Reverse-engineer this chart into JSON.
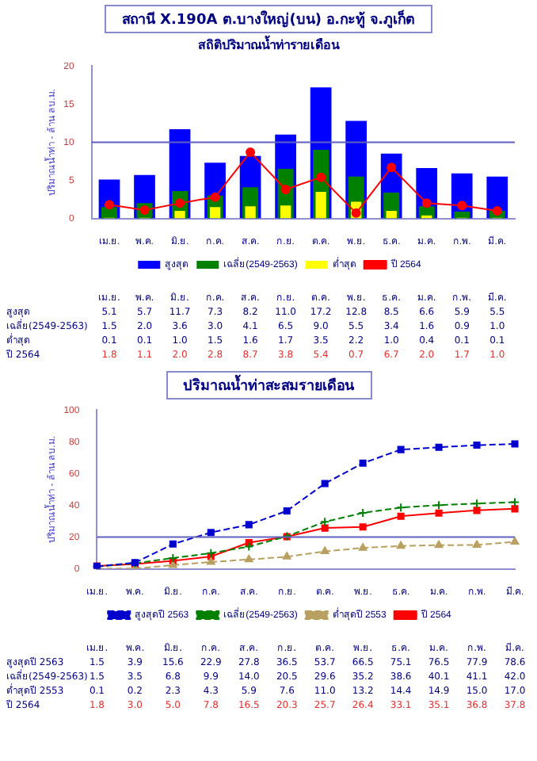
{
  "chart_data": [
    {
      "type": "bar",
      "title": "สถานี X.190A ต.บางใหญ่(บน) อ.กะทู้ จ.ภูเก็ต",
      "subtitle": "สถิติปริมาณน้ำท่ารายเดือน",
      "ylabel": "ปริมาณน้ำท่า - ล้าน ลบ.ม.",
      "categories": [
        "เม.ย.",
        "พ.ค.",
        "มิ.ย.",
        "ก.ค.",
        "ส.ค.",
        "ก.ย.",
        "ต.ค.",
        "พ.ย.",
        "ธ.ค.",
        "ม.ค.",
        "ก.พ.",
        "มี.ค."
      ],
      "series": [
        {
          "name": "สูงสุด",
          "color": "#0000ff",
          "values": [
            5.1,
            5.7,
            11.7,
            7.3,
            8.2,
            11.0,
            17.2,
            12.8,
            8.5,
            6.6,
            5.9,
            5.5
          ],
          "value_labels": [
            "5.1",
            "5.7",
            "11.7",
            "7.3",
            "8.2",
            "11.0",
            "17.2",
            "12.8",
            "8.5",
            "6.6",
            "5.9",
            "5.5"
          ]
        },
        {
          "name": "เฉลี่ย(2549-2563)",
          "color": "#008000",
          "values": [
            1.5,
            2.0,
            3.6,
            3.0,
            4.1,
            6.5,
            9.0,
            5.5,
            3.4,
            1.6,
            0.9,
            1.0
          ],
          "value_labels": [
            "1.5",
            "2.0",
            "3.6",
            "3.0",
            "4.1",
            "6.5",
            "9.0",
            "5.5",
            "3.4",
            "1.6",
            "0.9",
            "1.0"
          ]
        },
        {
          "name": "ต่ำสุด",
          "color": "#ffff00",
          "values": [
            0.1,
            0.1,
            1.0,
            1.5,
            1.6,
            1.7,
            3.5,
            2.2,
            1.0,
            0.4,
            0.1,
            0.1
          ],
          "value_labels": [
            "0.1",
            "0.1",
            "1.0",
            "1.5",
            "1.6",
            "1.7",
            "3.5",
            "2.2",
            "1.0",
            "0.4",
            "0.1",
            "0.1"
          ]
        },
        {
          "name": "ปี 2564",
          "type": "line",
          "color": "#ff0000",
          "marker": "circle",
          "values": [
            1.8,
            1.1,
            2.0,
            2.8,
            8.7,
            3.8,
            5.4,
            0.7,
            6.7,
            2.0,
            1.7,
            1.0
          ],
          "value_labels": [
            "1.8",
            "1.1",
            "2.0",
            "2.8",
            "8.7",
            "3.8",
            "5.4",
            "0.7",
            "6.7",
            "2.0",
            "1.7",
            "1.0"
          ]
        }
      ],
      "ylim": [
        0,
        20
      ],
      "yticks": [
        0,
        5,
        10,
        15,
        20
      ],
      "ref_lines": [
        {
          "axis": "y",
          "value": 10
        }
      ],
      "legend": "bottom"
    },
    {
      "type": "line",
      "title": "ปริมาณน้ำท่าสะสมรายเดือน",
      "ylabel": "ปริมาณน้ำท่า - ล้าน ลบ.ม.",
      "categories": [
        "เม.ย.",
        "พ.ค.",
        "มิ.ย.",
        "ก.ค.",
        "ส.ค.",
        "ก.ย.",
        "ต.ค.",
        "พ.ย.",
        "ธ.ค.",
        "ม.ค.",
        "ก.พ.",
        "มี.ค."
      ],
      "series": [
        {
          "name": "สูงสุดปี 2563",
          "color": "#0000cc",
          "marker": "square",
          "line_style": "dashed",
          "values": [
            1.5,
            3.9,
            15.6,
            22.9,
            27.8,
            36.5,
            53.7,
            66.5,
            75.1,
            76.5,
            77.9,
            78.6
          ],
          "value_labels": [
            "1.5",
            "3.9",
            "15.6",
            "22.9",
            "27.8",
            "36.5",
            "53.7",
            "66.5",
            "75.1",
            "76.5",
            "77.9",
            "78.6"
          ]
        },
        {
          "name": "เฉลี่ย(2549-2563)",
          "color": "#008000",
          "marker": "cross",
          "line_style": "dashed",
          "values": [
            1.5,
            3.5,
            6.8,
            9.9,
            14.0,
            20.5,
            29.6,
            35.2,
            38.6,
            40.1,
            41.1,
            42.0
          ],
          "value_labels": [
            "1.5",
            "3.5",
            "6.8",
            "9.9",
            "14.0",
            "20.5",
            "29.6",
            "35.2",
            "38.6",
            "40.1",
            "41.1",
            "42.0"
          ]
        },
        {
          "name": "ต่ำสุดปี 2553",
          "color": "#b8a060",
          "marker": "triangle",
          "line_style": "dashed",
          "values": [
            0.1,
            0.2,
            2.3,
            4.3,
            5.9,
            7.6,
            11.0,
            13.2,
            14.4,
            14.9,
            15.0,
            17.0
          ],
          "value_labels": [
            "0.1",
            "0.2",
            "2.3",
            "4.3",
            "5.9",
            "7.6",
            "11.0",
            "13.2",
            "14.4",
            "14.9",
            "15.0",
            "17.0"
          ]
        },
        {
          "name": "ปี 2564",
          "color": "#ff0000",
          "marker": "square",
          "line_style": "solid",
          "values": [
            1.8,
            3.0,
            5.0,
            7.8,
            16.5,
            20.3,
            25.7,
            26.4,
            33.1,
            35.1,
            36.8,
            37.8
          ],
          "value_labels": [
            "1.8",
            "3.0",
            "5.0",
            "7.8",
            "16.5",
            "20.3",
            "25.7",
            "26.4",
            "33.1",
            "35.1",
            "36.8",
            "37.8"
          ]
        }
      ],
      "ylim": [
        0,
        100
      ],
      "yticks": [
        0,
        20,
        40,
        60,
        80,
        100
      ],
      "ref_lines": [
        {
          "axis": "y",
          "value": 20
        }
      ],
      "legend": "bottom"
    }
  ]
}
